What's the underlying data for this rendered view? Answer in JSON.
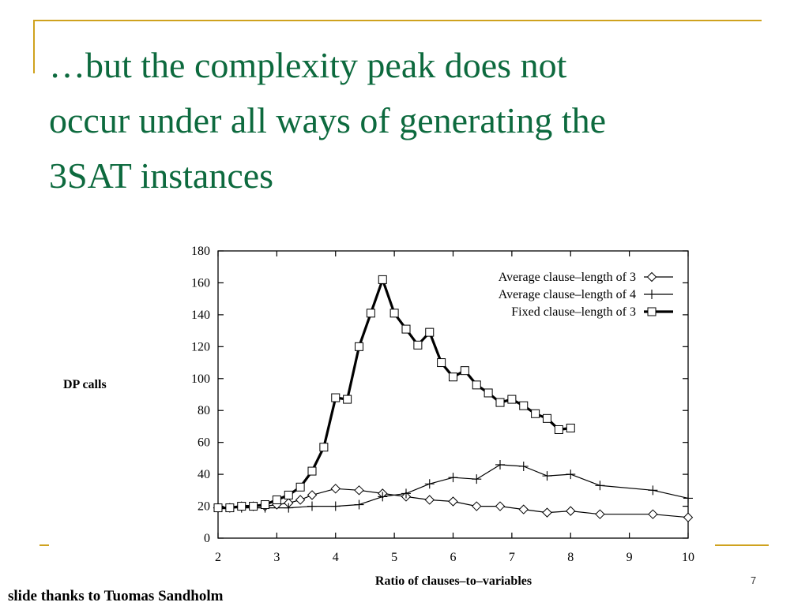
{
  "slide": {
    "title": "…but the complexity peak does not\noccur under all ways of generating the\n3SAT instances",
    "credit": "slide thanks to Tuomas Sandholm",
    "page_number": "7"
  },
  "colors": {
    "title": "#0d6a3e",
    "accent": "#cfa21e",
    "plot": "#000000"
  },
  "chart_data": {
    "type": "line",
    "xlabel": "Ratio of clauses–to–variables",
    "ylabel": "DP calls",
    "xlim": [
      2,
      10
    ],
    "ylim": [
      0,
      180
    ],
    "xticks": [
      2,
      3,
      4,
      5,
      6,
      7,
      8,
      9,
      10
    ],
    "yticks": [
      0,
      20,
      40,
      60,
      80,
      100,
      120,
      140,
      160,
      180
    ],
    "legend_position": "top-right",
    "grid": false,
    "series": [
      {
        "name": "Average clause–length of 3",
        "marker": "diamond",
        "line": "thin",
        "x": [
          2.0,
          2.2,
          2.4,
          2.6,
          2.8,
          3.0,
          3.2,
          3.4,
          3.6,
          4.0,
          4.4,
          4.8,
          5.2,
          5.6,
          6.0,
          6.4,
          6.8,
          7.2,
          7.6,
          8.0,
          8.5,
          9.4,
          10.0
        ],
        "values": [
          19,
          19,
          20,
          20,
          20,
          21,
          22,
          24,
          27,
          31,
          30,
          28,
          26,
          24,
          23,
          20,
          20,
          18,
          16,
          17,
          15,
          15,
          13
        ]
      },
      {
        "name": "Average clause–length of 4",
        "marker": "plus",
        "line": "thin",
        "x": [
          2.0,
          2.4,
          2.8,
          3.2,
          3.6,
          4.0,
          4.4,
          4.8,
          5.2,
          5.6,
          6.0,
          6.4,
          6.8,
          7.2,
          7.6,
          8.0,
          8.5,
          9.4,
          10.0
        ],
        "values": [
          19,
          19,
          19,
          19,
          20,
          20,
          21,
          26,
          28,
          34,
          38,
          37,
          46,
          45,
          39,
          40,
          33,
          30,
          25
        ]
      },
      {
        "name": "Fixed clause–length of 3",
        "marker": "square",
        "line": "thick",
        "x": [
          2.0,
          2.2,
          2.4,
          2.6,
          2.8,
          3.0,
          3.2,
          3.4,
          3.6,
          3.8,
          4.0,
          4.2,
          4.4,
          4.6,
          4.8,
          5.0,
          5.2,
          5.4,
          5.6,
          5.8,
          6.0,
          6.2,
          6.4,
          6.6,
          6.8,
          7.0,
          7.2,
          7.4,
          7.6,
          7.8,
          8.0
        ],
        "values": [
          19,
          19,
          20,
          20,
          21,
          24,
          27,
          32,
          42,
          57,
          88,
          87,
          120,
          141,
          162,
          141,
          131,
          121,
          129,
          110,
          101,
          105,
          96,
          91,
          85,
          87,
          83,
          78,
          75,
          68,
          69
        ]
      }
    ]
  }
}
